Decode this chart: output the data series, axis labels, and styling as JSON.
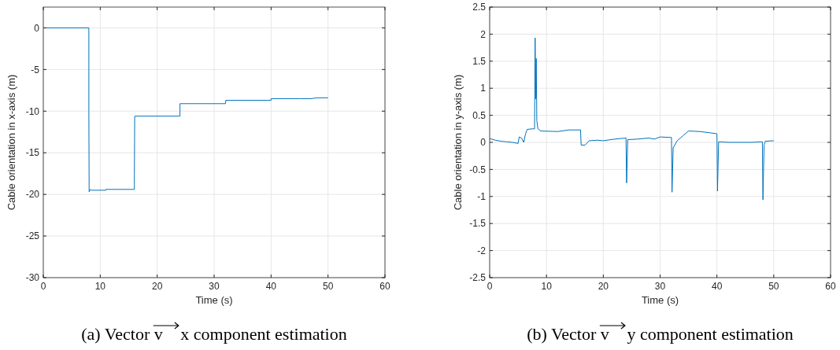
{
  "chart_data": [
    {
      "type": "line",
      "title": "(a) Vector v⃗ x component estimation",
      "xlabel": "Time (s)",
      "ylabel": "Cable orientation in x-axis (m)",
      "xlim": [
        0,
        60
      ],
      "xticks": [
        0,
        10,
        20,
        30,
        40,
        50,
        60
      ],
      "ylim": [
        -30,
        2.5
      ],
      "yticks": [
        -30,
        -25,
        -20,
        -15,
        -10,
        -5,
        0
      ],
      "grid": true,
      "series": [
        {
          "color": "#0072bd",
          "x": [
            0,
            8,
            8,
            8.05,
            8.3,
            8.5,
            11,
            11,
            16,
            16,
            16.05,
            16.1,
            24,
            24,
            32,
            32.05,
            40,
            40,
            45,
            47,
            48,
            50
          ],
          "values": [
            0,
            0,
            -10,
            -19.7,
            -19.4,
            -19.5,
            -19.5,
            -19.4,
            -19.4,
            -17.7,
            -10.6,
            -10.6,
            -10.6,
            -9.1,
            -9.1,
            -8.7,
            -8.7,
            -8.5,
            -8.5,
            -8.5,
            -8.4,
            -8.4
          ]
        }
      ]
    },
    {
      "type": "line",
      "title": "(b) Vector v⃗ y component estimation",
      "xlabel": "Time (s)",
      "ylabel": "Cable orientation in y-axis (m)",
      "xlim": [
        0,
        60
      ],
      "xticks": [
        0,
        10,
        20,
        30,
        40,
        50,
        60
      ],
      "ylim": [
        -2.5,
        2.5
      ],
      "yticks": [
        -2.5,
        -2,
        -1.5,
        -1,
        -0.5,
        0,
        0.5,
        1,
        1.5,
        2,
        2.5
      ],
      "grid": true,
      "series": [
        {
          "color": "#0072bd",
          "x": [
            0,
            1,
            2,
            3,
            4,
            5,
            5.2,
            5.6,
            6,
            6.3,
            6.6,
            7.5,
            7.9,
            8,
            8.1,
            8.2,
            8.3,
            8.5,
            9,
            12,
            14,
            16,
            16.1,
            16.8,
            17.5,
            19,
            20,
            22,
            24,
            24.1,
            24.3,
            26,
            28,
            29,
            30,
            32,
            32.1,
            32.3,
            33,
            34,
            35,
            37,
            40,
            40.1,
            40.3,
            42,
            46,
            48,
            48.1,
            48.3,
            48.5,
            50
          ],
          "values": [
            0.07,
            0.04,
            0.02,
            0.01,
            0,
            -0.02,
            0.1,
            0.08,
            0,
            0.15,
            0.24,
            0.25,
            0.25,
            1.93,
            0.8,
            1.55,
            0.4,
            0.25,
            0.21,
            0.2,
            0.23,
            0.23,
            -0.05,
            -0.05,
            0.03,
            0.04,
            0.03,
            0.06,
            0.08,
            -0.75,
            0.05,
            0.06,
            0.08,
            0.06,
            0.1,
            0.09,
            -0.92,
            -0.1,
            0.03,
            0.12,
            0.21,
            0.2,
            0.16,
            -0.9,
            0.01,
            0,
            0,
            0.01,
            -1.06,
            -0.05,
            0.02,
            0.03
          ]
        }
      ]
    }
  ]
}
